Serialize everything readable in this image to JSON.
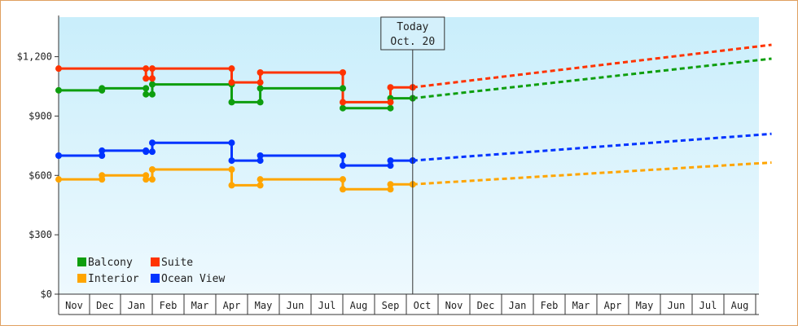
{
  "chart_data": {
    "type": "line",
    "title": "",
    "xlabel": "",
    "ylabel": "",
    "ylim": [
      0,
      1400
    ],
    "y_ticks": [
      0,
      300,
      600,
      900,
      1200
    ],
    "y_tick_labels": [
      "$0",
      "$300",
      "$600",
      "$900",
      "$1,200"
    ],
    "x_tick_labels": [
      "Nov",
      "Dec",
      "Jan",
      "Feb",
      "Mar",
      "Apr",
      "May",
      "Jun",
      "Jul",
      "Aug",
      "Sep",
      "Oct",
      "Nov",
      "Dec",
      "Jan",
      "Feb",
      "Mar",
      "Apr",
      "May",
      "Jun",
      "Jul",
      "Aug"
    ],
    "grid": false,
    "background": "gradient light blue",
    "legend_position": "bottom-left",
    "today_marker": {
      "line1": "Today",
      "line2": "Oct. 20",
      "month_index": 11.2
    },
    "series": [
      {
        "name": "Balcony",
        "color": "#0e9e0e",
        "steps": [
          [
            0.0,
            1030
          ],
          [
            1.4,
            1040
          ],
          [
            2.8,
            1010
          ],
          [
            3.0,
            1060
          ],
          [
            5.5,
            970
          ],
          [
            6.4,
            1040
          ],
          [
            9.0,
            940
          ],
          [
            10.5,
            990
          ],
          [
            11.2,
            990
          ]
        ],
        "forecast": [
          [
            11.2,
            990
          ],
          [
            22.5,
            1190
          ]
        ]
      },
      {
        "name": "Suite",
        "color": "#ff3300",
        "steps": [
          [
            0.0,
            1140
          ],
          [
            2.8,
            1090
          ],
          [
            3.0,
            1140
          ],
          [
            5.5,
            1070
          ],
          [
            6.4,
            1120
          ],
          [
            9.0,
            970
          ],
          [
            10.5,
            1045
          ],
          [
            11.2,
            1045
          ]
        ],
        "forecast": [
          [
            11.2,
            1045
          ],
          [
            22.5,
            1260
          ]
        ]
      },
      {
        "name": "Interior",
        "color": "#ffa500",
        "steps": [
          [
            0.0,
            580
          ],
          [
            1.4,
            600
          ],
          [
            2.8,
            580
          ],
          [
            3.0,
            630
          ],
          [
            5.5,
            550
          ],
          [
            6.4,
            580
          ],
          [
            9.0,
            530
          ],
          [
            10.5,
            555
          ],
          [
            11.2,
            555
          ]
        ],
        "forecast": [
          [
            11.2,
            555
          ],
          [
            22.5,
            665
          ]
        ]
      },
      {
        "name": "Ocean View",
        "color": "#0033ff",
        "steps": [
          [
            0.0,
            700
          ],
          [
            1.4,
            725
          ],
          [
            2.8,
            720
          ],
          [
            3.0,
            765
          ],
          [
            5.5,
            675
          ],
          [
            6.4,
            700
          ],
          [
            9.0,
            650
          ],
          [
            10.5,
            675
          ],
          [
            11.2,
            675
          ]
        ],
        "forecast": [
          [
            11.2,
            675
          ],
          [
            22.5,
            810
          ]
        ]
      }
    ]
  }
}
